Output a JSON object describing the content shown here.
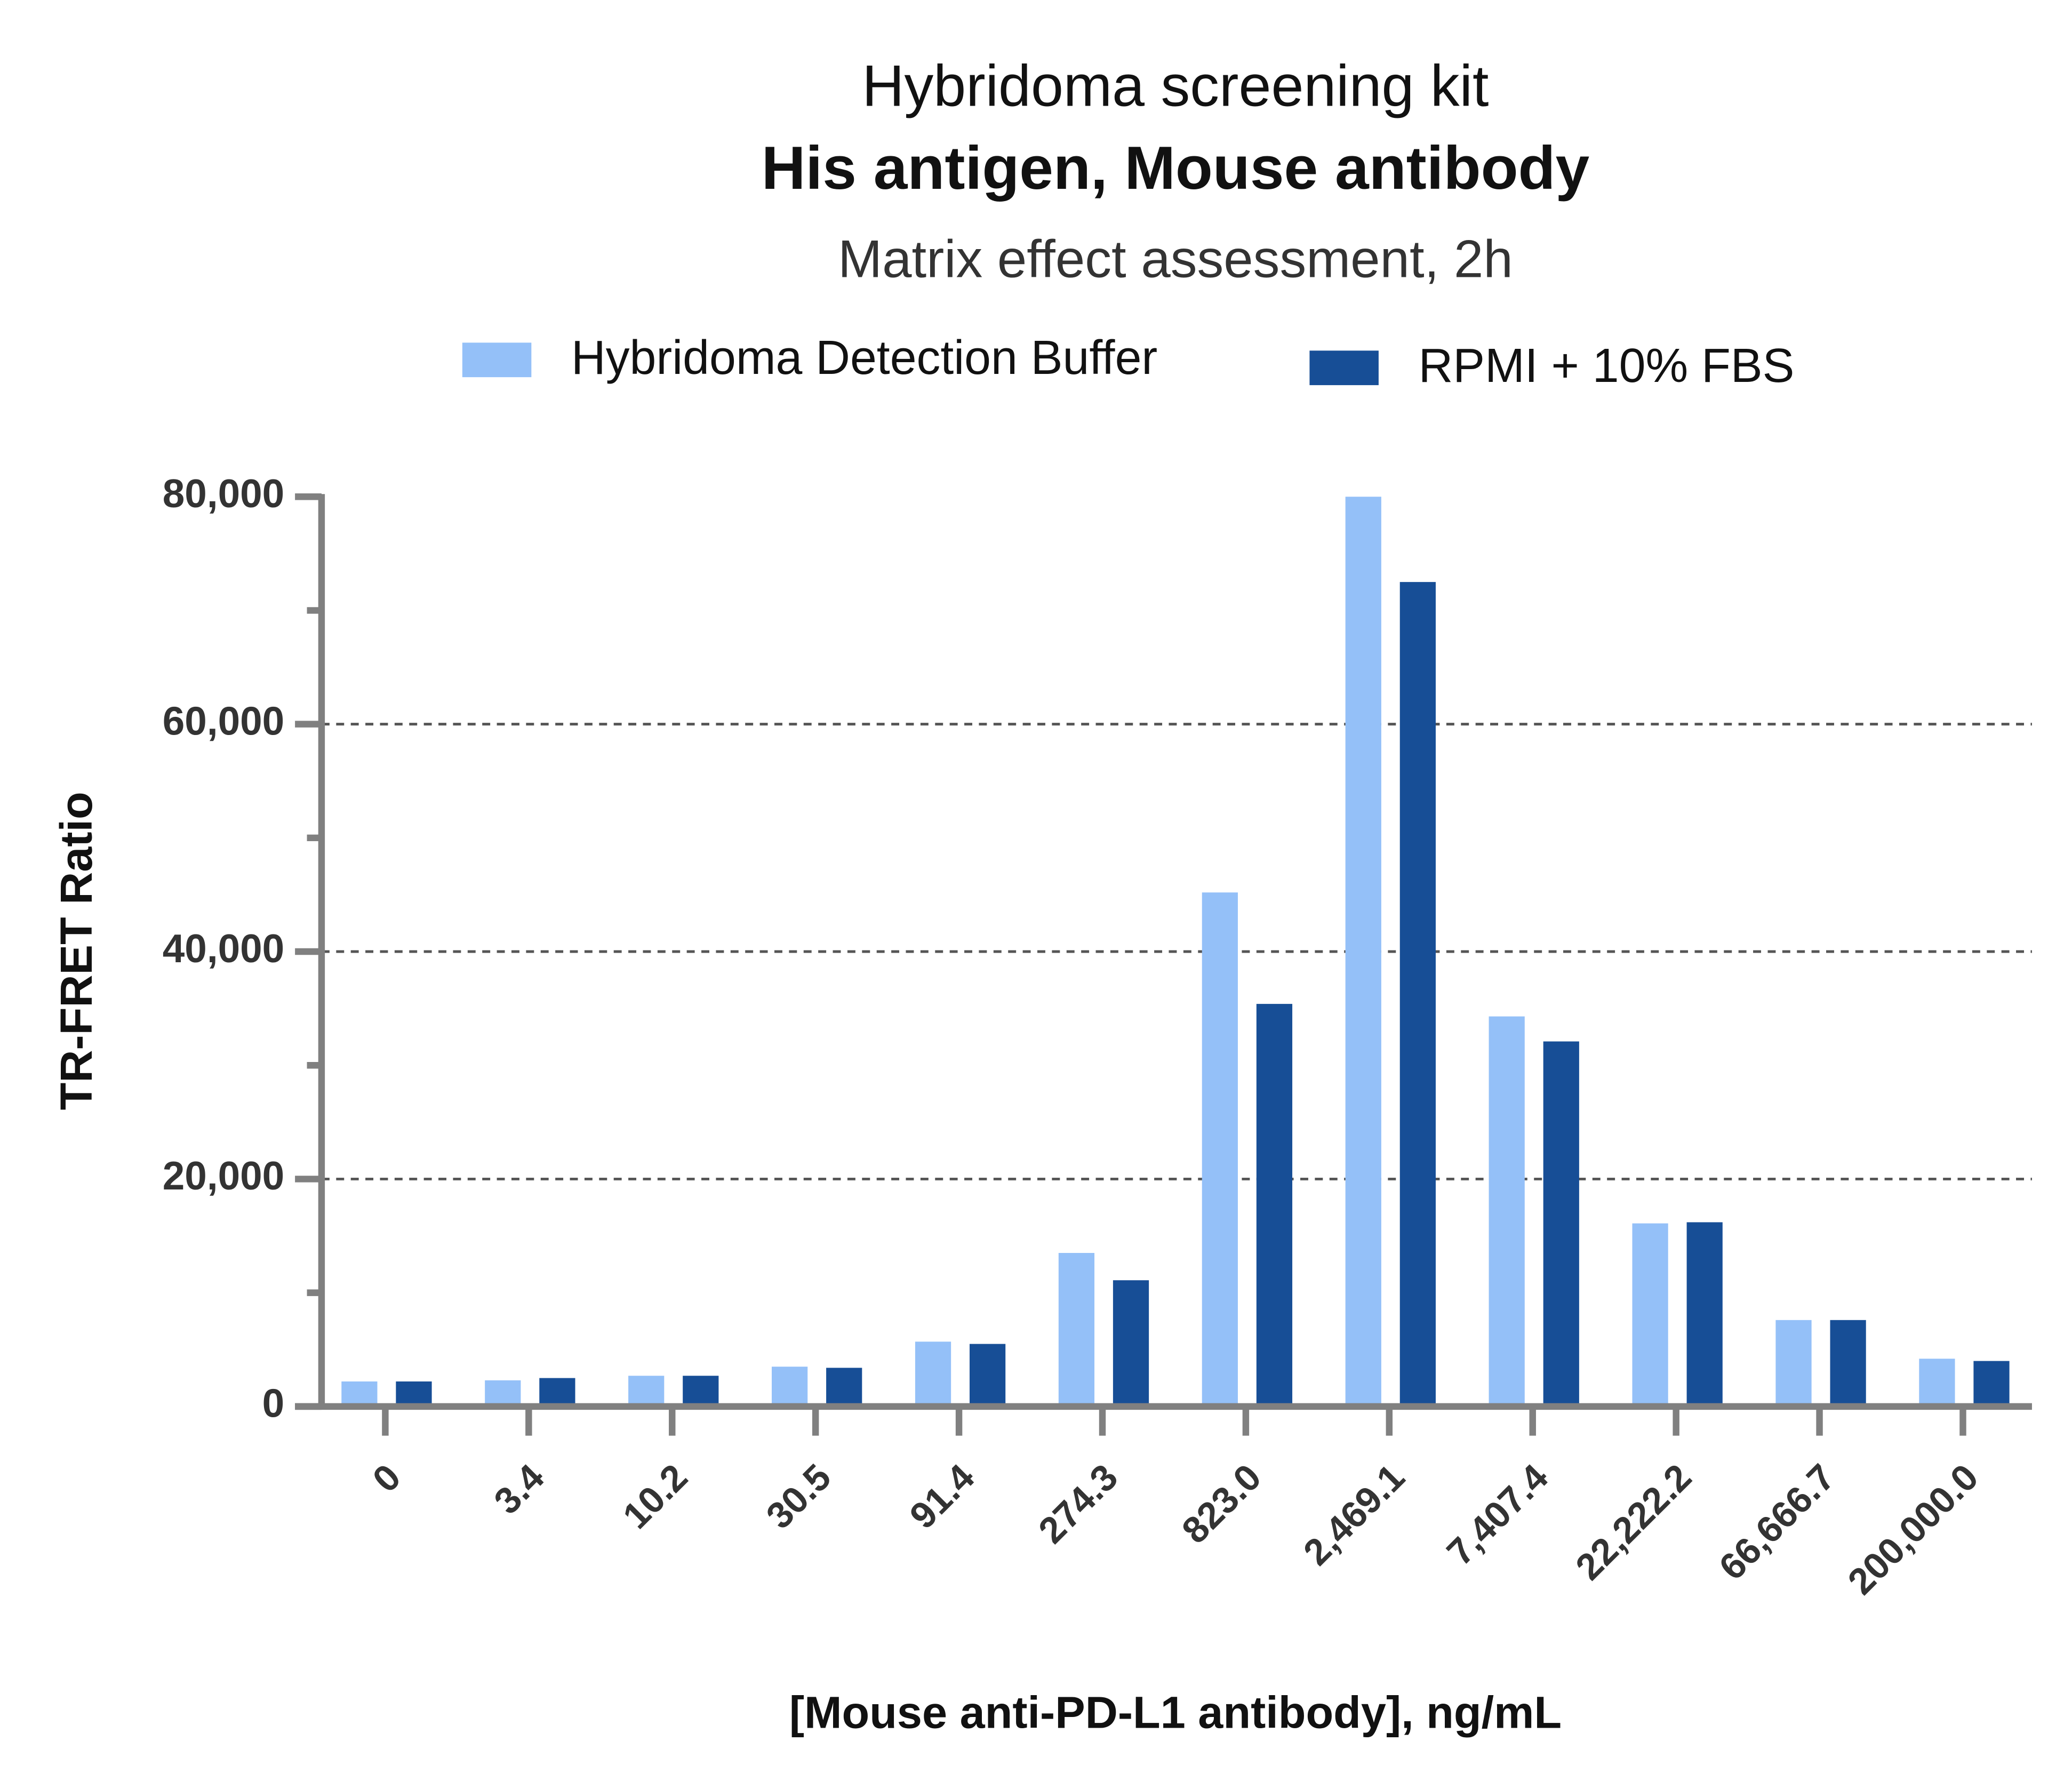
{
  "chart_data": {
    "type": "bar",
    "title": "Hybridoma screening kit",
    "subtitle": "His antigen, Mouse antibody",
    "caption": "Matrix effect assessment, 2h",
    "x_label": "[Mouse anti-PD-L1 antibody], ng/mL",
    "y_label": "TR-FRET Ratio",
    "categories": [
      "0",
      "3.4",
      "10.2",
      "30.5",
      "91.4",
      "274.3",
      "823.0",
      "2,469.1",
      "7,407.4",
      "22,222.2",
      "66,666.7",
      "200,000.0"
    ],
    "series": [
      {
        "name": "Hybridoma Detection Buffer",
        "color": "#94c0f8",
        "values": [
          2200,
          2300,
          2700,
          3500,
          5700,
          13500,
          45200,
          80000,
          34300,
          16100,
          7600,
          4200
        ]
      },
      {
        "name": "RPMI + 10% FBS",
        "color": "#174e96",
        "values": [
          2200,
          2500,
          2700,
          3400,
          5500,
          11100,
          35400,
          72500,
          32100,
          16200,
          7600,
          4000
        ]
      }
    ],
    "ylim": [
      0,
      80000
    ],
    "yticks": [
      0,
      {
        "value": 20000,
        "label": "20,000"
      },
      {
        "value": 40000,
        "label": "40,000"
      },
      {
        "value": 60000,
        "label": "60,000"
      },
      {
        "value": 80000,
        "label": "80,000"
      }
    ],
    "y_minor_ticks": [
      10000,
      30000,
      50000,
      70000
    ],
    "grid": true
  }
}
